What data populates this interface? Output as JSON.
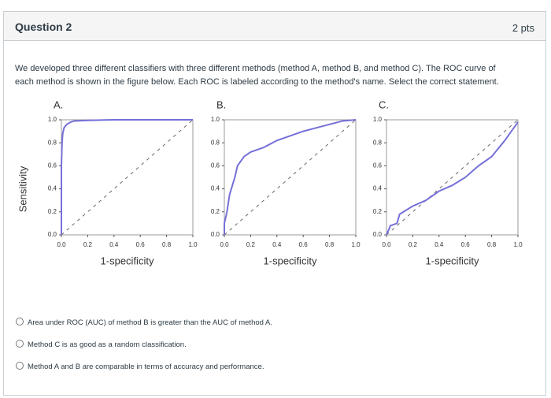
{
  "header": {
    "title": "Question 2",
    "points": "2 pts"
  },
  "question": {
    "lines": [
      "We developed three different classifiers with three different methods (method A, method B, and method C). The ROC curve of",
      "each method is shown in the figure below. Each ROC is labeled according to the method's name. Select the correct statement."
    ]
  },
  "y_label": "Sensitivity",
  "chart_data": [
    {
      "type": "line",
      "title": "A.",
      "xlabel": "1-specificity",
      "color": "#7470d8",
      "diagonal": true,
      "x": [
        0,
        0,
        0.005,
        0.01,
        0.02,
        0.04,
        0.07,
        0.1,
        0.2,
        0.4,
        0.6,
        0.8,
        1.0
      ],
      "values": [
        0,
        0.6,
        0.8,
        0.88,
        0.93,
        0.96,
        0.98,
        0.99,
        0.995,
        1,
        1,
        1,
        1
      ],
      "xlim": [
        0,
        1
      ],
      "ylim": [
        0,
        1
      ],
      "xticks": [
        {
          "value": 0,
          "label": "0.0"
        },
        0.2,
        0.4,
        0.6,
        0.8,
        {
          "value": 1,
          "label": "1.0"
        }
      ],
      "yticks": [
        {
          "value": 0,
          "label": "0.0"
        },
        0.2,
        0.4,
        0.6,
        0.8,
        {
          "value": 1,
          "label": "1.0"
        }
      ]
    },
    {
      "type": "line",
      "title": "B.",
      "xlabel": "1-specificity",
      "color": "#7470d8",
      "diagonal": true,
      "x": [
        0,
        0,
        0.02,
        0.04,
        0.08,
        0.1,
        0.15,
        0.2,
        0.3,
        0.4,
        0.5,
        0.6,
        0.7,
        0.8,
        0.9,
        1.0
      ],
      "values": [
        0,
        0.1,
        0.2,
        0.35,
        0.5,
        0.6,
        0.68,
        0.72,
        0.76,
        0.82,
        0.86,
        0.9,
        0.93,
        0.96,
        0.99,
        1
      ],
      "xlim": [
        0,
        1
      ],
      "ylim": [
        0,
        1
      ],
      "xticks": [
        {
          "value": 0,
          "label": "0.0"
        },
        0.2,
        0.4,
        0.6,
        0.8,
        {
          "value": 1,
          "label": "1.0"
        }
      ],
      "yticks": [
        {
          "value": 0,
          "label": "0.0"
        },
        0.2,
        0.4,
        0.6,
        0.8,
        {
          "value": 1,
          "label": "1.0"
        }
      ]
    },
    {
      "type": "line",
      "title": "C.",
      "xlabel": "1-specificity",
      "color": "#7470d8",
      "diagonal": true,
      "x": [
        0,
        0.03,
        0.08,
        0.1,
        0.2,
        0.3,
        0.4,
        0.5,
        0.6,
        0.7,
        0.8,
        0.9,
        0.95,
        1.0
      ],
      "values": [
        0,
        0.08,
        0.1,
        0.18,
        0.25,
        0.3,
        0.38,
        0.43,
        0.5,
        0.6,
        0.68,
        0.82,
        0.9,
        0.98
      ],
      "xlim": [
        0,
        1
      ],
      "ylim": [
        0,
        1
      ],
      "xticks": [
        {
          "value": 0,
          "label": "0.0"
        },
        0.2,
        0.4,
        0.6,
        0.8,
        {
          "value": 1,
          "label": "1.0"
        }
      ],
      "yticks": [
        {
          "value": 0,
          "label": "0.0"
        },
        0.2,
        0.4,
        0.6,
        0.8,
        {
          "value": 1,
          "label": "1.0"
        }
      ]
    }
  ],
  "options": [
    "Area under ROC (AUC) of method B is greater than the AUC of method A.",
    "Method C is as good as a random classification.",
    "Method A and B are comparable in terms of accuracy and performance."
  ]
}
